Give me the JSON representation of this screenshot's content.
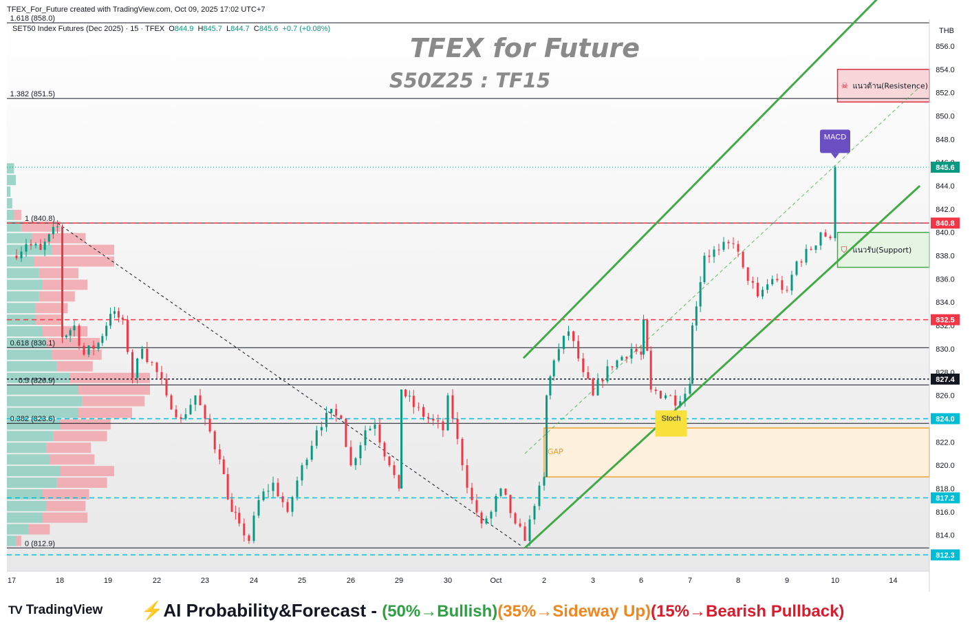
{
  "header": {
    "created_note": "TFEX_For_Future created with TradingView.com, Oct 09, 2025 17:02 UTC+7",
    "symbol_title": "SET50 Index Futures (Dec 2025) · 15 · TFEX",
    "ohlc": {
      "open_label": "O",
      "open": "844.9",
      "high_label": "H",
      "high": "845.7",
      "low_label": "L",
      "low": "844.7",
      "close_label": "C",
      "close": "845.6",
      "change": "+0.7 (+0.08%)"
    }
  },
  "chart_data": {
    "type": "candlestick",
    "title": "TFEX for Future",
    "subtitle": "S50Z25 : TF15",
    "currency": "THB",
    "ylim": [
      811.5,
      858.5
    ],
    "y_ticks": [
      814.0,
      816.0,
      818.0,
      820.0,
      822.0,
      824.0,
      826.0,
      828.0,
      830.0,
      832.0,
      834.0,
      836.0,
      838.0,
      840.0,
      842.0,
      844.0,
      846.0,
      848.0,
      850.0,
      852.0,
      854.0,
      856.0
    ],
    "x_tick_labels": [
      {
        "label": "17",
        "x": 0
      },
      {
        "label": "18",
        "x": 1
      },
      {
        "label": "19",
        "x": 2
      },
      {
        "label": "22",
        "x": 3
      },
      {
        "label": "23",
        "x": 4
      },
      {
        "label": "24",
        "x": 5
      },
      {
        "label": "25",
        "x": 6
      },
      {
        "label": "26",
        "x": 7
      },
      {
        "label": "29",
        "x": 8
      },
      {
        "label": "30",
        "x": 9
      },
      {
        "label": "Oct",
        "x": 10
      },
      {
        "label": "2",
        "x": 11
      },
      {
        "label": "3",
        "x": 12
      },
      {
        "label": "6",
        "x": 13
      },
      {
        "label": "7",
        "x": 14
      },
      {
        "label": "8",
        "x": 15
      },
      {
        "label": "9",
        "x": 16
      },
      {
        "label": "10",
        "x": 17
      },
      {
        "label": "14",
        "x": 18.2
      }
    ],
    "price_path": [
      [
        0,
        838.0
      ],
      [
        0.3,
        839.0
      ],
      [
        0.6,
        838.5
      ],
      [
        0.95,
        840.5
      ],
      [
        1.05,
        831.0
      ],
      [
        1.3,
        832.0
      ],
      [
        1.5,
        829.5
      ],
      [
        1.8,
        830.5
      ],
      [
        2.05,
        833.0
      ],
      [
        2.3,
        832.5
      ],
      [
        2.5,
        827.5
      ],
      [
        2.7,
        830.0
      ],
      [
        3.0,
        828.0
      ],
      [
        3.2,
        826.0
      ],
      [
        3.5,
        824.0
      ],
      [
        3.8,
        826.0
      ],
      [
        4.0,
        824.0
      ],
      [
        4.3,
        820.5
      ],
      [
        4.55,
        816.0
      ],
      [
        4.7,
        815.0
      ],
      [
        4.9,
        813.5
      ],
      [
        5.1,
        817.0
      ],
      [
        5.4,
        818.5
      ],
      [
        5.7,
        816.0
      ],
      [
        6.0,
        820.0
      ],
      [
        6.3,
        823.0
      ],
      [
        6.5,
        824.5
      ],
      [
        6.8,
        824.0
      ],
      [
        7.0,
        820.0
      ],
      [
        7.3,
        823.0
      ],
      [
        7.5,
        823.5
      ],
      [
        7.8,
        820.0
      ],
      [
        8.0,
        818.0
      ],
      [
        8.05,
        826.5
      ],
      [
        8.3,
        825.0
      ],
      [
        8.6,
        824.0
      ],
      [
        8.9,
        823.0
      ],
      [
        9.0,
        826.0
      ],
      [
        9.1,
        824.0
      ],
      [
        9.3,
        820.0
      ],
      [
        9.5,
        817.0
      ],
      [
        9.7,
        815.0
      ],
      [
        9.9,
        816.0
      ],
      [
        10.1,
        818.0
      ],
      [
        10.4,
        815.0
      ],
      [
        10.6,
        813.5
      ],
      [
        10.8,
        816.5
      ],
      [
        11.0,
        819.0
      ],
      [
        11.05,
        826.0
      ],
      [
        11.2,
        829.0
      ],
      [
        11.5,
        831.5
      ],
      [
        11.8,
        828.0
      ],
      [
        12.0,
        826.0
      ],
      [
        12.3,
        828.5
      ],
      [
        12.5,
        829.0
      ],
      [
        12.8,
        830.0
      ],
      [
        13.0,
        829.5
      ],
      [
        13.05,
        832.5
      ],
      [
        13.2,
        826.5
      ],
      [
        13.5,
        826.0
      ],
      [
        13.8,
        825.5
      ],
      [
        14.0,
        827.0
      ],
      [
        14.05,
        832.0
      ],
      [
        14.3,
        838.0
      ],
      [
        14.6,
        838.5
      ],
      [
        14.9,
        839.0
      ],
      [
        15.1,
        837.0
      ],
      [
        15.4,
        834.5
      ],
      [
        15.7,
        836.0
      ],
      [
        16.0,
        835.0
      ],
      [
        16.2,
        837.5
      ],
      [
        16.5,
        838.5
      ],
      [
        16.7,
        840.0
      ],
      [
        16.9,
        839.5
      ],
      [
        17.0,
        845.6
      ]
    ],
    "volume_profile_rows": [
      [
        845.5,
        0.04,
        0.0
      ],
      [
        844.5,
        0.05,
        0.0
      ],
      [
        843.5,
        0.02,
        0.0
      ],
      [
        842.5,
        0.03,
        0.0
      ],
      [
        841.5,
        0.04,
        0.04
      ],
      [
        840.5,
        0.08,
        0.22
      ],
      [
        839.5,
        0.14,
        0.3
      ],
      [
        838.5,
        0.25,
        0.35
      ],
      [
        837.5,
        0.15,
        0.45
      ],
      [
        836.5,
        0.18,
        0.22
      ],
      [
        835.5,
        0.2,
        0.25
      ],
      [
        834.5,
        0.18,
        0.2
      ],
      [
        833.5,
        0.16,
        0.18
      ],
      [
        832.5,
        0.16,
        0.15
      ],
      [
        831.5,
        0.2,
        0.25
      ],
      [
        830.5,
        0.22,
        0.3
      ],
      [
        829.5,
        0.25,
        0.28
      ],
      [
        828.5,
        0.28,
        0.2
      ],
      [
        827.5,
        0.35,
        0.45
      ],
      [
        826.5,
        0.4,
        0.4
      ],
      [
        825.5,
        0.42,
        0.35
      ],
      [
        824.5,
        0.4,
        0.3
      ],
      [
        823.5,
        0.3,
        0.28
      ],
      [
        822.5,
        0.26,
        0.3
      ],
      [
        821.5,
        0.22,
        0.25
      ],
      [
        820.5,
        0.24,
        0.25
      ],
      [
        819.5,
        0.3,
        0.3
      ],
      [
        818.5,
        0.28,
        0.28
      ],
      [
        817.5,
        0.2,
        0.26
      ],
      [
        816.5,
        0.22,
        0.22
      ],
      [
        815.5,
        0.2,
        0.25
      ],
      [
        814.5,
        0.12,
        0.12
      ],
      [
        813.5,
        0.05,
        0.03
      ]
    ],
    "fib_levels": [
      {
        "label": "1.618 (858.0)",
        "price": 858.0
      },
      {
        "label": "1.382 (851.5)",
        "price": 851.5
      },
      {
        "label": "1 (840.8)",
        "price": 840.8
      },
      {
        "label": "0.618 (830.1)",
        "price": 830.1
      },
      {
        "label": "0.5 (826.9)",
        "price": 826.9
      },
      {
        "label": "0.382 (823.6)",
        "price": 823.6
      },
      {
        "label": "0 (812.9)",
        "price": 812.9
      }
    ],
    "horizontal_levels": [
      {
        "price": 840.8,
        "label": "840.8",
        "color": "#f23645",
        "style": "dashed"
      },
      {
        "price": 832.5,
        "label": "832.5",
        "color": "#f23645",
        "style": "dashed"
      },
      {
        "price": 827.4,
        "label": "827.4",
        "color": "#131722",
        "style": "dotted"
      },
      {
        "price": 824.0,
        "label": "824.0",
        "color": "#00bcd4",
        "style": "dashed"
      },
      {
        "price": 817.2,
        "label": "817.2",
        "color": "#00bcd4",
        "style": "dashed"
      },
      {
        "price": 812.3,
        "label": "812.3",
        "color": "#00bcd4",
        "style": "dashed"
      }
    ],
    "current_price": {
      "price": 845.6,
      "label": "845.6",
      "color": "#089981"
    },
    "channel": {
      "color": "#43a947",
      "upper": [
        [
          10.57,
          829.2
        ],
        [
          18.38,
          862.2
        ]
      ],
      "lower": [
        [
          10.6,
          812.9
        ],
        [
          18.75,
          844.0
        ]
      ],
      "mid": [
        [
          10.6,
          821.0
        ],
        [
          18.75,
          852.5
        ]
      ]
    },
    "trendline_down": [
      [
        0.95,
        840.8
      ],
      [
        10.55,
        813.0
      ]
    ],
    "zones": [
      {
        "label": "แนวต้าน(Resistence)",
        "icon": "☠",
        "from_x": 17.05,
        "price_top": 854.0,
        "price_bottom": 851.2,
        "fill": "#f8d7da",
        "stroke": "#e0303f"
      },
      {
        "label": "แนวรับ(Support)",
        "icon": "shield",
        "from_x": 17.05,
        "price_top": 840.0,
        "price_bottom": 837.0,
        "fill": "#e6f4e4",
        "stroke": "#43a947"
      },
      {
        "label": "GAP",
        "from_x": 11.0,
        "price_top": 823.2,
        "price_bottom": 819.0,
        "fill": "#fdf1dd",
        "stroke": "#f0a02c"
      }
    ],
    "annotations": [
      {
        "label": "MACD",
        "x": 17.0,
        "price": 848.0,
        "fill": "#6a4fc2"
      },
      {
        "label": "Stoch",
        "x": 13.6,
        "price": 824.0,
        "fill": "#f7e13a"
      }
    ]
  },
  "footer": {
    "brand": "TradingView",
    "brand_mark": "TV",
    "forecast_head": "⚡AI Probability&Forecast - ",
    "forecast_bull": "(50%→Bullish)",
    "forecast_side": "(35%→Sideway Up)",
    "forecast_bear": "(15%→Bearish Pullback)",
    "colors": {
      "bull": "#2ea043",
      "side": "#f0861f",
      "bear": "#d81b2d"
    }
  }
}
